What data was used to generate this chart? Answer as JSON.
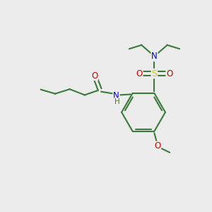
{
  "bg_color": "#ececec",
  "bond_color": "#3a7a3a",
  "atom_colors": {
    "N": "#0000cc",
    "O": "#cc0000",
    "S": "#cccc00",
    "C": "#3a7a3a",
    "H": "#3a7a3a"
  },
  "figsize": [
    3.0,
    3.0
  ],
  "dpi": 100
}
